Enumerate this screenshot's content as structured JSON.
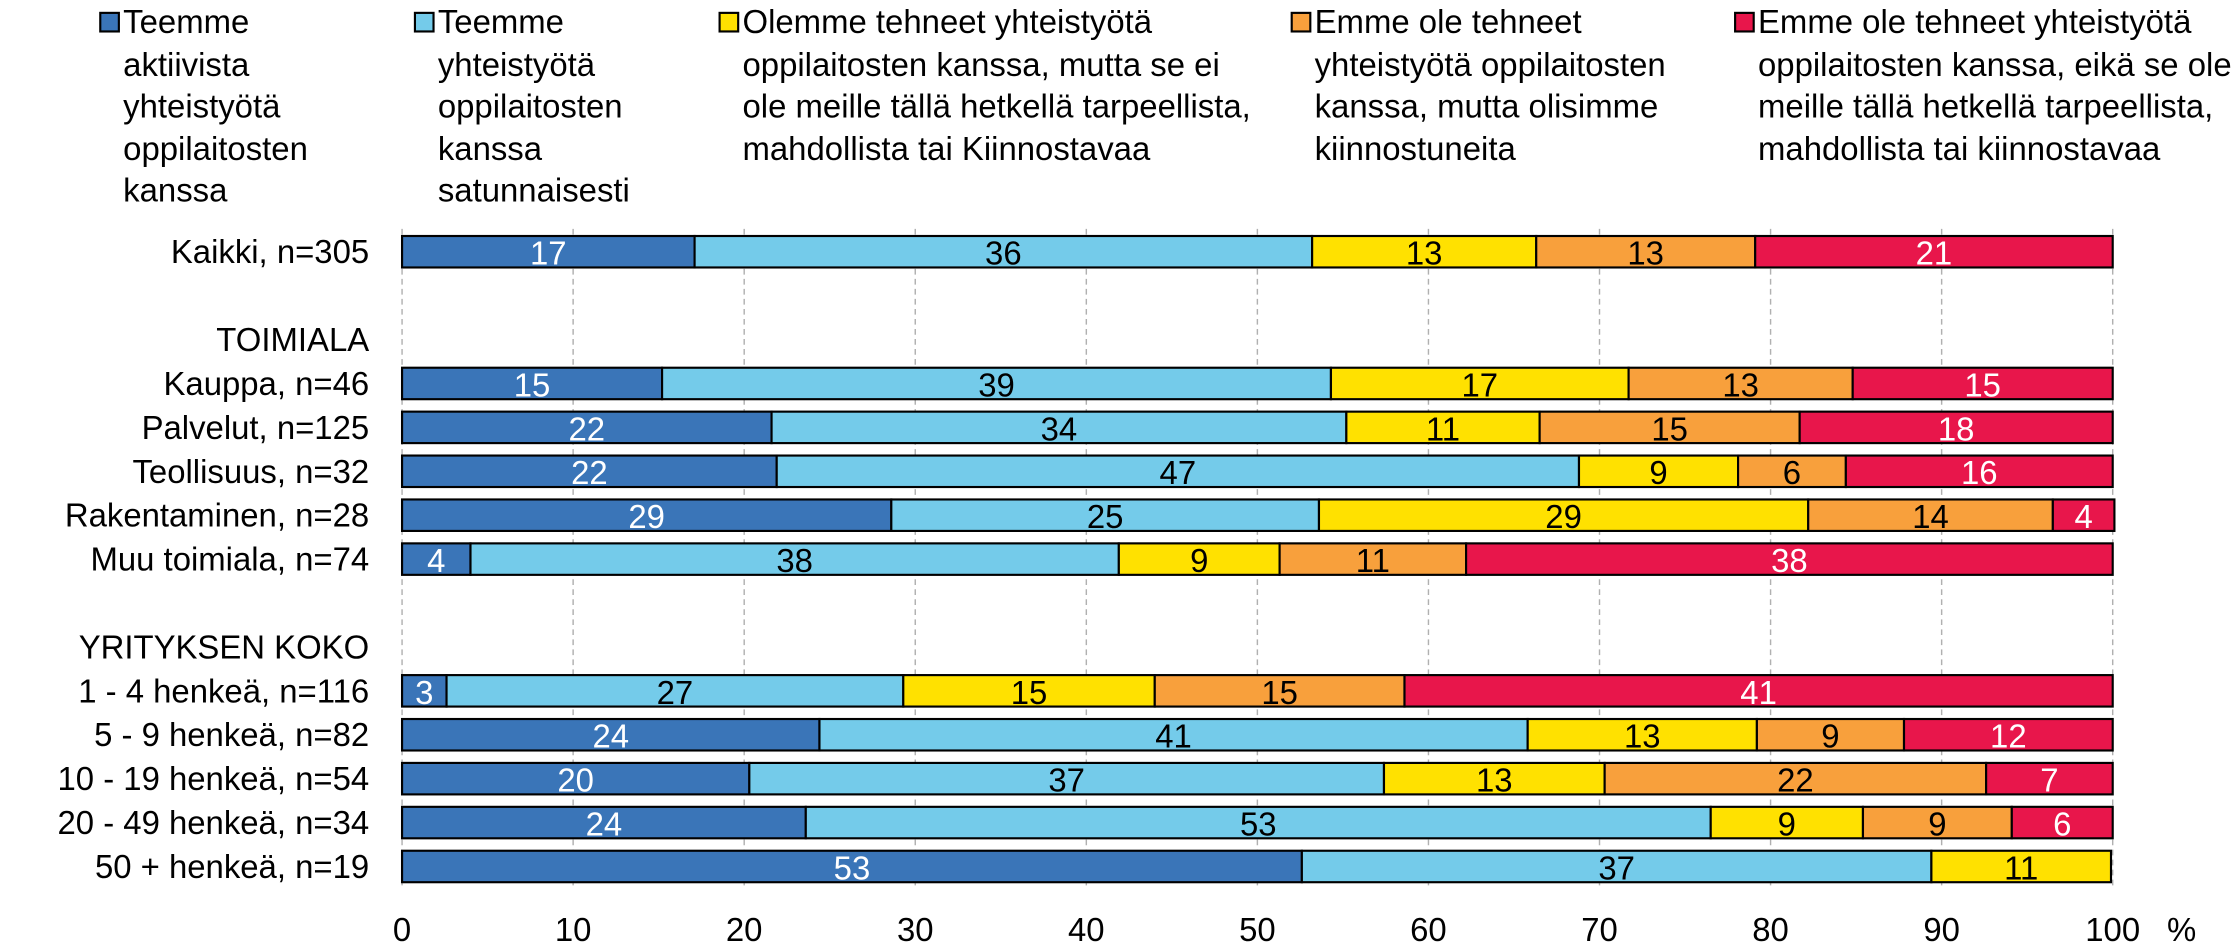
{
  "chart_data": {
    "type": "stacked-bar-horizontal",
    "categories": [
      "Kaikki, n=305",
      null,
      "TOIMIALA",
      "Kauppa, n=46",
      "Palvelut, n=125",
      "Teollisuus, n=32",
      "Rakentaminen, n=28",
      "Muu toimiala, n=74",
      null,
      "YRITYKSEN KOKO",
      "1 - 4 henkeä, n=116",
      "5 - 9 henkeä, n=82",
      "10 - 19 henkeä, n=54",
      "20 - 49 henkeä, n=34",
      "50 + henkeä, n=19"
    ],
    "series": [
      {
        "name": "Teemme aktiivista yhteistyötä oppilaitosten kanssa",
        "color": "#3a75b8",
        "label_color": "#ffffff",
        "values": [
          17.1,
          null,
          null,
          15.2,
          21.6,
          21.9,
          28.6,
          4.0,
          null,
          null,
          2.6,
          24.4,
          20.3,
          23.6,
          52.6
        ],
        "value_labels": [
          "17",
          null,
          null,
          "15",
          "22",
          "22",
          "29",
          "4",
          null,
          null,
          "3",
          "24",
          "20",
          "24",
          "53"
        ]
      },
      {
        "name": "Teemme yhteistyötä oppilaitosten kanssa satunnaisesti",
        "color": "#74cbea",
        "label_color": "#000000",
        "values": [
          36.1,
          null,
          null,
          39.1,
          33.6,
          46.9,
          25.0,
          37.9,
          null,
          null,
          26.7,
          41.4,
          37.1,
          52.9,
          36.8
        ],
        "value_labels": [
          "36",
          null,
          null,
          "39",
          "34",
          "47",
          "25",
          "38",
          null,
          null,
          "27",
          "41",
          "37",
          "53",
          "37"
        ]
      },
      {
        "name": "Olemme tehneet yhteistyötä oppilaitosten kanssa, mutta se ei ole meille tällä hetkellä tarpeellista, mahdollista tai Kiinnostavaa",
        "color": "#ffe100",
        "label_color": "#000000",
        "values": [
          13.1,
          null,
          null,
          17.4,
          11.3,
          9.3,
          28.6,
          9.4,
          null,
          null,
          14.7,
          13.4,
          12.9,
          8.9,
          10.5
        ],
        "value_labels": [
          "13",
          null,
          null,
          "17",
          "11",
          "9",
          "29",
          "9",
          null,
          null,
          "15",
          "13",
          "13",
          "9",
          "11"
        ]
      },
      {
        "name": "Emme ole tehneet yhteistyötä oppilaitosten kanssa, mutta olisimme kiinnostuneita",
        "color": "#f8a03c",
        "label_color": "#000000",
        "values": [
          12.8,
          null,
          null,
          13.1,
          15.2,
          6.3,
          14.3,
          10.9,
          null,
          null,
          14.6,
          8.6,
          22.3,
          8.7,
          null
        ],
        "value_labels": [
          "13",
          null,
          null,
          "13",
          "15",
          "6",
          "14",
          "11",
          null,
          null,
          "15",
          "9",
          "22",
          "9",
          null
        ]
      },
      {
        "name": "Emme ole tehneet yhteistyötä oppilaitosten kanssa, eikä se ole meille tällä hetkellä tarpeellista, mahdollista tai kiinnostavaa",
        "color": "#e8164b",
        "label_color": "#ffffff",
        "values": [
          20.9,
          null,
          null,
          15.2,
          18.3,
          15.6,
          3.6,
          37.8,
          null,
          null,
          41.4,
          12.2,
          7.4,
          5.9,
          null
        ],
        "value_labels": [
          "21",
          null,
          null,
          "15",
          "18",
          "16",
          "4",
          "38",
          null,
          null,
          "41",
          "12",
          "7",
          "6",
          null
        ]
      }
    ],
    "xlim": [
      0,
      100
    ],
    "xticks": [
      0,
      10,
      20,
      30,
      40,
      50,
      60,
      70,
      80,
      90,
      100
    ],
    "xlabel": "%",
    "grid": true,
    "legend": "top"
  }
}
